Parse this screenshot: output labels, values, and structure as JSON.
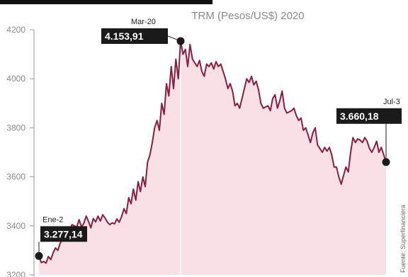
{
  "chart_data": {
    "type": "area",
    "title": "TRM (Pesos/US$) 2020",
    "xlabel": "",
    "ylabel": "",
    "ylim": [
      3200,
      4200
    ],
    "yticks": [
      3200,
      3400,
      3600,
      3800,
      4000,
      4200
    ],
    "grid": false,
    "colors": {
      "line": "#8c1d3f",
      "fill": "#f8e0e6",
      "marker": "#1a1a1a"
    },
    "series": [
      {
        "values": [
          3277.14,
          3250,
          3255,
          3248,
          3275,
          3262,
          3290,
          3310,
          3300,
          3330,
          3345,
          3365,
          3395,
          3385,
          3405,
          3400,
          3395,
          3425,
          3395,
          3410,
          3440,
          3418,
          3392,
          3430,
          3416,
          3440,
          3420,
          3445,
          3432,
          3415,
          3405,
          3412,
          3408,
          3428,
          3415,
          3438,
          3470,
          3450,
          3515,
          3490,
          3550,
          3505,
          3580,
          3540,
          3600,
          3560,
          3660,
          3690,
          3740,
          3800,
          3830,
          3790,
          3900,
          3855,
          3980,
          3930,
          4050,
          3960,
          4080,
          4000,
          4153.91,
          4100,
          4120,
          4050,
          4140,
          4080,
          4065,
          4050,
          4075,
          4030,
          4010,
          4060,
          4050,
          4065,
          4040,
          4070,
          4050,
          4060,
          4030,
          4000,
          3960,
          3980,
          3950,
          3890,
          3900,
          3880,
          3920,
          3960,
          4000,
          3985,
          4010,
          3975,
          3990,
          3955,
          3900,
          3880,
          3885,
          3890,
          3870,
          3920,
          3935,
          3880,
          3910,
          3950,
          3880,
          3860,
          3865,
          3870,
          3880,
          3850,
          3830,
          3840,
          3790,
          3800,
          3770,
          3740,
          3780,
          3800,
          3730,
          3715,
          3700,
          3720,
          3705,
          3720,
          3690,
          3640,
          3640,
          3600,
          3570,
          3605,
          3640,
          3620,
          3700,
          3760,
          3740,
          3755,
          3750,
          3740,
          3760,
          3745,
          3715,
          3700,
          3720,
          3745,
          3700,
          3720,
          3690,
          3660.18
        ]
      }
    ],
    "annotations": [
      {
        "date": "Ene-2",
        "value": "3.277,14"
      },
      {
        "date": "Mar-20",
        "value": "4.153,91"
      },
      {
        "date": "Jul-3",
        "value": "3.660,18"
      }
    ],
    "source": "Fuente: Superfinanciera"
  }
}
